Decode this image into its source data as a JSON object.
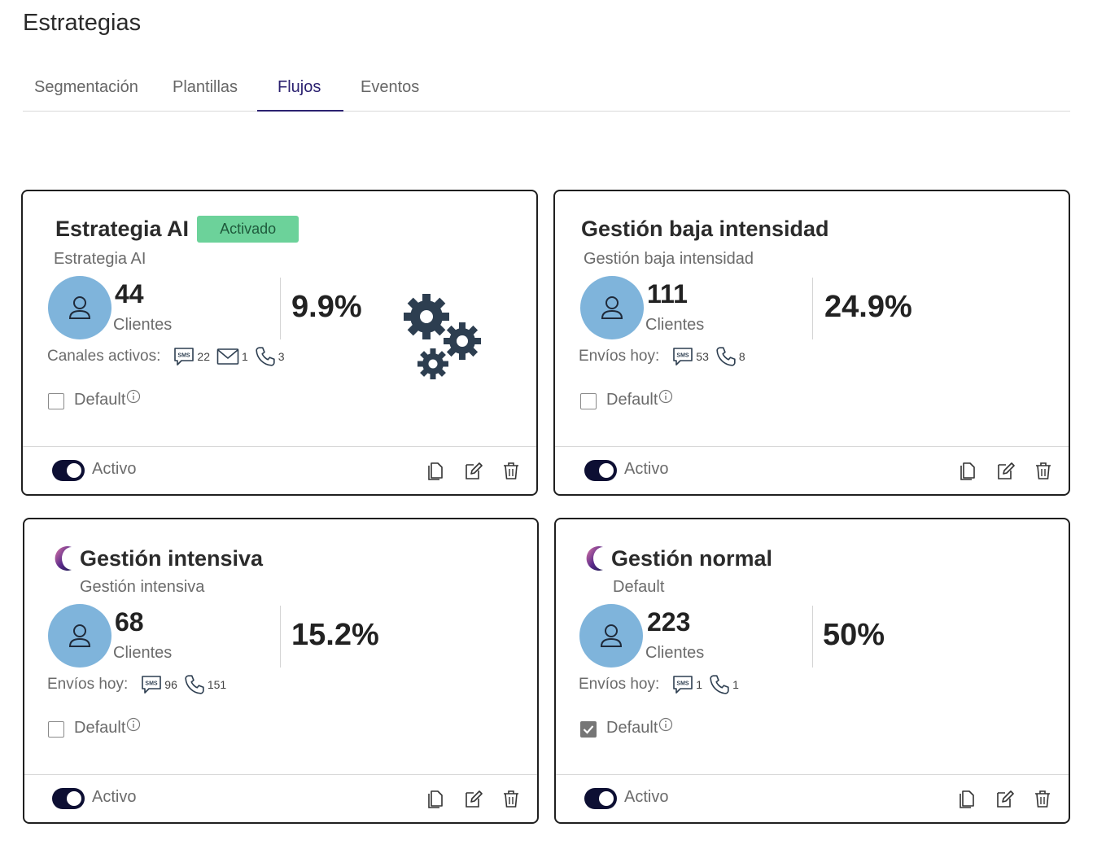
{
  "page": {
    "title": "Estrategias"
  },
  "tabs": [
    {
      "label": "Segmentación",
      "active": false
    },
    {
      "label": "Plantillas",
      "active": false
    },
    {
      "label": "Flujos",
      "active": true
    },
    {
      "label": "Eventos",
      "active": false
    }
  ],
  "colors": {
    "accent": "#2b2170",
    "badge_bg": "#6cd29a",
    "avatar_bg": "#7fb4db",
    "toggle_on": "#0d0f33",
    "icon_dark": "#2d3e50"
  },
  "cards": [
    {
      "title": "Estrategia AI",
      "badge": "Activado",
      "subtitle": "Estrategia AI",
      "icon": "gears-icon",
      "clients": "44",
      "clients_label": "Clientes",
      "percent": "9.9%",
      "channels_label": "Canales activos:",
      "channels": [
        {
          "icon": "sms-icon",
          "count": "22"
        },
        {
          "icon": "mail-icon",
          "count": "1"
        },
        {
          "icon": "phone-icon",
          "count": "3"
        }
      ],
      "default_label": "Default",
      "default_checked": false,
      "status_label": "Activo",
      "active": true
    },
    {
      "title": "Gestión baja intensidad",
      "subtitle": "Gestión baja intensidad",
      "clients": "111",
      "clients_label": "Clientes",
      "percent": "24.9%",
      "channels_label": "Envíos hoy:",
      "channels": [
        {
          "icon": "sms-icon",
          "count": "53"
        },
        {
          "icon": "phone-icon",
          "count": "8"
        }
      ],
      "default_label": "Default",
      "default_checked": false,
      "status_label": "Activo",
      "active": true
    },
    {
      "title": "Gestión intensiva",
      "subtitle": "Gestión intensiva",
      "icon": "moon-icon",
      "clients": "68",
      "clients_label": "Clientes",
      "percent": "15.2%",
      "channels_label": "Envíos hoy:",
      "channels": [
        {
          "icon": "sms-icon",
          "count": "96"
        },
        {
          "icon": "phone-icon",
          "count": "151"
        }
      ],
      "default_label": "Default",
      "default_checked": false,
      "status_label": "Activo",
      "active": true
    },
    {
      "title": "Gestión normal",
      "subtitle": "Default",
      "icon": "moon-icon",
      "clients": "223",
      "clients_label": "Clientes",
      "percent": "50%",
      "channels_label": "Envíos hoy:",
      "channels": [
        {
          "icon": "sms-icon",
          "count": "1"
        },
        {
          "icon": "phone-icon",
          "count": "1"
        }
      ],
      "default_label": "Default",
      "default_checked": true,
      "status_label": "Activo",
      "active": true
    }
  ]
}
